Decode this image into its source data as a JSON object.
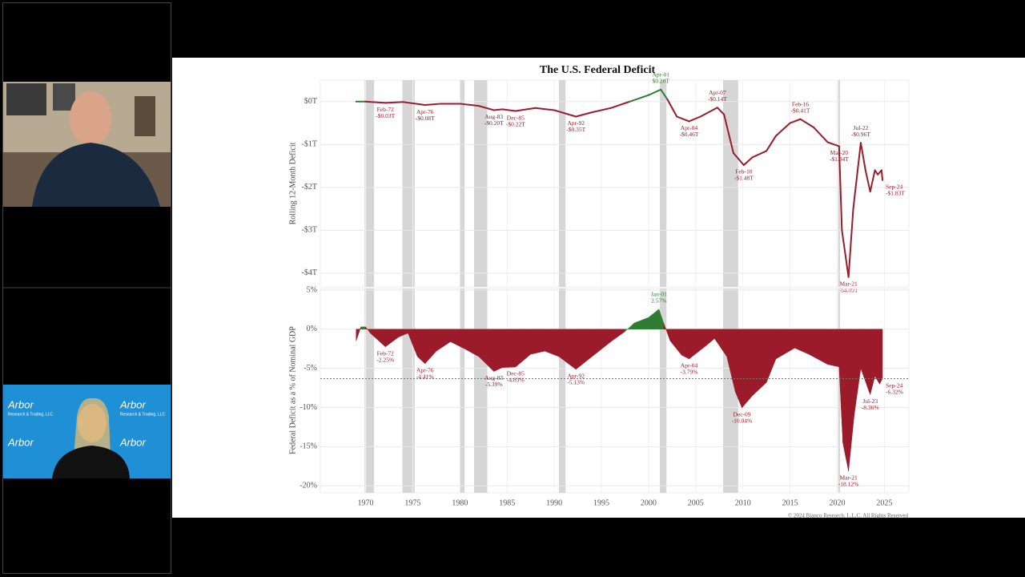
{
  "window": {
    "banner_text": "Arbor",
    "banner_subtext": "Research & Trading, LLC"
  },
  "chart_data": [
    {
      "type": "line",
      "title": "The U.S. Federal Deficit",
      "ylabel": "Rolling 12-Month Deficit",
      "positive_color": "#2e7d32",
      "negative_color": "#9b1b2a",
      "x": [
        1969,
        1970,
        1972.1,
        1974,
        1976.3,
        1978,
        1980,
        1982,
        1983.6,
        1984.5,
        1985.9,
        1988,
        1990,
        1992.3,
        1994,
        1996,
        1998,
        2000,
        2001.3,
        2002,
        2003,
        2004.3,
        2005.5,
        2007.3,
        2008,
        2009,
        2010.1,
        2011,
        2012.5,
        2013.5,
        2015,
        2016.1,
        2017.5,
        2019,
        2020.2,
        2020.5,
        2021.2,
        2021.7,
        2022.5,
        2023,
        2023.5,
        2024,
        2024.3,
        2024.7,
        2024.8
      ],
      "values": [
        0.0,
        0.0,
        -0.03,
        -0.01,
        -0.08,
        -0.05,
        -0.05,
        -0.1,
        -0.2,
        -0.18,
        -0.22,
        -0.15,
        -0.2,
        -0.35,
        -0.25,
        -0.15,
        0.0,
        0.15,
        0.28,
        0.05,
        -0.35,
        -0.46,
        -0.35,
        -0.14,
        -0.3,
        -1.2,
        -1.48,
        -1.3,
        -1.15,
        -0.8,
        -0.5,
        -0.41,
        -0.6,
        -0.95,
        -1.04,
        -3.0,
        -4.09,
        -2.5,
        -0.96,
        -1.6,
        -2.1,
        -1.6,
        -1.7,
        -1.6,
        -1.83
      ],
      "xlim": [
        1965.2,
        2027.6
      ],
      "ylim": [
        -4.32,
        0.5
      ],
      "yticks": [
        {
          "value": 0,
          "label": "$0T"
        },
        {
          "value": -1,
          "label": "-$1T"
        },
        {
          "value": -2,
          "label": "-$2T"
        },
        {
          "value": -3,
          "label": "-$3T"
        },
        {
          "value": -4,
          "label": "-$4T"
        }
      ],
      "recessions": [
        [
          1969.9,
          1970.9
        ],
        [
          1973.9,
          1975.2
        ],
        [
          1980.0,
          1980.5
        ],
        [
          1981.5,
          1982.9
        ],
        [
          1990.5,
          1991.2
        ],
        [
          2001.2,
          2001.9
        ],
        [
          2007.9,
          2009.5
        ],
        [
          2020.1,
          2020.3
        ]
      ],
      "grid": true,
      "annotations": [
        {
          "x": 1972.1,
          "y": -0.03,
          "lines": [
            "Feb-72",
            "-$0.03T"
          ]
        },
        {
          "x": 1976.3,
          "y": -0.08,
          "lines": [
            "Apr-76",
            "-$0.08T"
          ]
        },
        {
          "x": 1983.6,
          "y": -0.2,
          "lines": [
            "Aug-83",
            "-$0.20T"
          ]
        },
        {
          "x": 1985.9,
          "y": -0.22,
          "lines": [
            "Dec-85",
            "-$0.22T"
          ]
        },
        {
          "x": 1992.3,
          "y": -0.35,
          "lines": [
            "Apr-92",
            "-$0.35T"
          ]
        },
        {
          "x": 2001.3,
          "y": 0.28,
          "lines": [
            "Apr-01",
            "$0.28T"
          ]
        },
        {
          "x": 2004.3,
          "y": -0.46,
          "lines": [
            "Apr-04",
            "-$0.46T"
          ]
        },
        {
          "x": 2007.3,
          "y": -0.14,
          "lines": [
            "Apr-07",
            "-$0.14T"
          ]
        },
        {
          "x": 2010.1,
          "y": -1.48,
          "lines": [
            "Feb-10",
            "-$1.48T"
          ]
        },
        {
          "x": 2016.1,
          "y": -0.41,
          "lines": [
            "Feb-16",
            "-$0.41T"
          ]
        },
        {
          "x": 2020.2,
          "y": -1.04,
          "lines": [
            "Mar-20",
            "-$1.04T"
          ]
        },
        {
          "x": 2022.5,
          "y": -0.96,
          "lines": [
            "Jul-22",
            "-$0.96T"
          ]
        },
        {
          "x": 2021.2,
          "y": -4.09,
          "lines": [
            "Mar-21",
            "-$4.09T"
          ]
        },
        {
          "x": 2024.8,
          "y": -1.83,
          "lines": [
            "Sep-24",
            "-$1.83T"
          ]
        }
      ]
    },
    {
      "type": "area",
      "ylabel": "Federal Deficit as a % of Nominal GDP",
      "positive_color": "#2e7d32",
      "negative_color": "#9b1b2a",
      "x": [
        1969,
        1969.5,
        1970,
        1970.5,
        1972.1,
        1973.5,
        1974.5,
        1975.5,
        1976.3,
        1977.5,
        1979,
        1980.5,
        1982,
        1983.6,
        1984.5,
        1985.9,
        1987.5,
        1989,
        1990.5,
        1992.3,
        1994,
        1996,
        1997.5,
        1998.5,
        2000,
        2001.1,
        2001.6,
        2002.3,
        2003.5,
        2004.3,
        2006,
        2007,
        2008.3,
        2009.2,
        2009.9,
        2011,
        2012.5,
        2013.5,
        2015.5,
        2017,
        2019,
        2020.2,
        2020.6,
        2021.2,
        2021.8,
        2022.5,
        2023.5,
        2024,
        2024.5,
        2024.8
      ],
      "values": [
        -1.5,
        0.3,
        0.3,
        -0.5,
        -2.25,
        -1.0,
        -0.5,
        -3.5,
        -4.41,
        -2.8,
        -1.6,
        -2.5,
        -3.5,
        -5.39,
        -4.9,
        -4.83,
        -3.2,
        -2.8,
        -3.5,
        -5.13,
        -3.5,
        -1.6,
        -0.3,
        0.8,
        1.5,
        2.57,
        0.8,
        -1.5,
        -3.3,
        -3.79,
        -2.2,
        -1.2,
        -3.5,
        -8,
        -10.04,
        -8.5,
        -6.8,
        -3.8,
        -2.4,
        -3.2,
        -4.5,
        -4.8,
        -14.5,
        -18.12,
        -11,
        -5,
        -8.36,
        -6.0,
        -7,
        -6.32
      ],
      "xlim": [
        1965.2,
        2027.6
      ],
      "ylim": [
        -20.9,
        5.2
      ],
      "yticks": [
        {
          "value": 5,
          "label": "5%"
        },
        {
          "value": 0,
          "label": "0%"
        },
        {
          "value": -5,
          "label": "-5%"
        },
        {
          "value": -10,
          "label": "-10%"
        },
        {
          "value": -15,
          "label": "-15%"
        },
        {
          "value": -20,
          "label": "-20%"
        }
      ],
      "xticks": [
        1970,
        1975,
        1980,
        1985,
        1990,
        1995,
        2000,
        2005,
        2010,
        2015,
        2020,
        2025
      ],
      "reference_line": -6.32,
      "grid": true,
      "annotations": [
        {
          "x": 1972.1,
          "y": -2.25,
          "lines": [
            "Feb-72",
            "-2.25%"
          ]
        },
        {
          "x": 1976.3,
          "y": -4.41,
          "lines": [
            "Apr-76",
            "-4.41%"
          ]
        },
        {
          "x": 1983.6,
          "y": -5.39,
          "lines": [
            "Aug-83",
            "-5.39%"
          ]
        },
        {
          "x": 1985.9,
          "y": -4.83,
          "lines": [
            "Dec-85",
            "-4.83%"
          ]
        },
        {
          "x": 1992.3,
          "y": -5.13,
          "lines": [
            "Apr-92",
            "-5.13%"
          ]
        },
        {
          "x": 2001.1,
          "y": 2.57,
          "lines": [
            "Jan-01",
            "2.57%"
          ]
        },
        {
          "x": 2004.3,
          "y": -3.79,
          "lines": [
            "Apr-04",
            "-3.79%"
          ]
        },
        {
          "x": 2009.9,
          "y": -10.04,
          "lines": [
            "Dec-09",
            "-10.04%"
          ]
        },
        {
          "x": 2021.2,
          "y": -18.12,
          "lines": [
            "Mar-21",
            "-18.12%"
          ]
        },
        {
          "x": 2023.5,
          "y": -8.36,
          "lines": [
            "Jul-23",
            "-8.36%"
          ]
        },
        {
          "x": 2024.8,
          "y": -6.32,
          "lines": [
            "Sep-24",
            "-6.32%"
          ]
        }
      ],
      "footer": "© 2024 Bianco Research, L.L.C. All Rights Reserved"
    }
  ]
}
